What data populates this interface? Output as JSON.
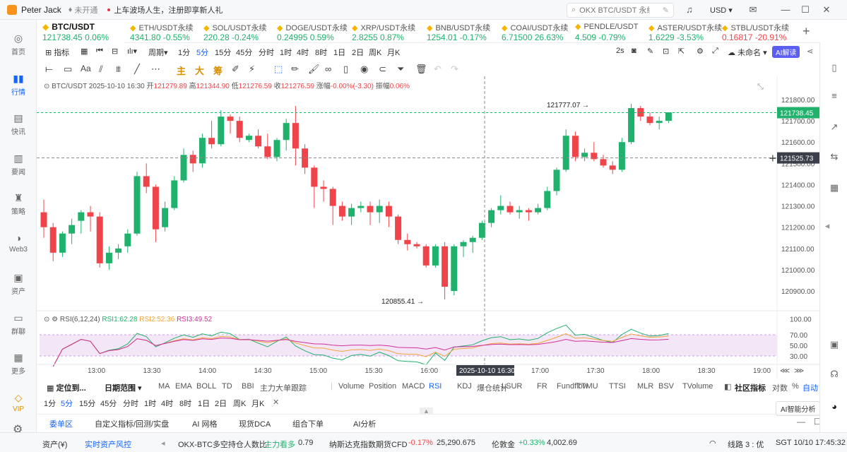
{
  "top": {
    "username": "Peter Jack",
    "verify_badge": "未开通",
    "news": "上车波场人生，注册即享新人礼",
    "search_placeholder": "OKX BTC/USDT 永续",
    "currency": "USD"
  },
  "sidebar": [
    {
      "label": "首页",
      "icon": "home-icon"
    },
    {
      "label": "行情",
      "icon": "chart-bars-icon",
      "active": true
    },
    {
      "label": "快讯",
      "icon": "flash-news-icon"
    },
    {
      "label": "要闻",
      "icon": "document-icon"
    },
    {
      "label": "策略",
      "icon": "strategy-icon"
    },
    {
      "label": "Web3",
      "icon": "web3-icon"
    },
    {
      "label": "资产",
      "icon": "wallet-icon"
    },
    {
      "label": "群聊",
      "icon": "chat-icon"
    },
    {
      "label": "更多",
      "icon": "grid-icon"
    },
    {
      "label": "VIP",
      "icon": "vip-diamond-icon"
    }
  ],
  "tickers": [
    {
      "name": "BTC/USDT",
      "price": "121738.45",
      "change": "0.06%",
      "dir": "up",
      "selected": true
    },
    {
      "name": "ETH/USDT永续",
      "price": "4341.80",
      "change": "-0.55%",
      "dir": "up"
    },
    {
      "name": "SOL/USDT永续",
      "price": "220.28",
      "change": "-0.24%",
      "dir": "up"
    },
    {
      "name": "DOGE/USDT永续",
      "price": "0.24995",
      "change": "0.59%",
      "dir": "up"
    },
    {
      "name": "XRP/USDT永续",
      "price": "2.8255",
      "change": "0.87%",
      "dir": "up"
    },
    {
      "name": "BNB/USDT永续",
      "price": "1254.01",
      "change": "-0.17%",
      "dir": "up"
    },
    {
      "name": "COAI/USDT永续",
      "price": "6.71500",
      "change": "26.63%",
      "dir": "up"
    },
    {
      "name": "PENDLE/USDT",
      "price": "4.509",
      "change": "-0.79%",
      "dir": "up"
    },
    {
      "name": "ASTER/USDT永续",
      "price": "1.6229",
      "change": "-3.53%",
      "dir": "up"
    },
    {
      "name": "STBL/USDT永续",
      "price": "0.16817",
      "change": "-20.91%",
      "dir": "dn"
    }
  ],
  "toolbar1": {
    "indicators": "指标",
    "period": "周期",
    "intervals": [
      "1分",
      "5分",
      "15分",
      "45分",
      "分时",
      "1时",
      "4时",
      "8时",
      "1日",
      "2日",
      "周K",
      "月K"
    ],
    "active_interval": "5分",
    "refresh": "2s",
    "unnamed": "未命名",
    "ai": "AI解读"
  },
  "toolbar2": {
    "text_tool": "Aa",
    "main_labels": [
      "主",
      "大",
      "筹"
    ]
  },
  "ohlc": {
    "symbol": "BTC/USDT",
    "datetime": "2025-10-10 16:30",
    "open_label": "开",
    "open": "121279.89",
    "high_label": "高",
    "high": "121344.90",
    "low_label": "低",
    "low": "121276.59",
    "close_label": "收",
    "close": "121276.59",
    "change_label": "涨幅",
    "change": "-0.00%(-3.30)",
    "amp_label": "振幅",
    "amp": "0.06%"
  },
  "chart_data": {
    "type": "candlestick",
    "price_axis": [
      "121800.00",
      "121700.00",
      "121600.00",
      "121500.00",
      "121400.00",
      "121300.00",
      "121200.00",
      "121100.00",
      "121000.00",
      "120900.00"
    ],
    "y_range": [
      120820,
      121880
    ],
    "time_axis": [
      "13:00",
      "13:30",
      "14:00",
      "14:30",
      "15:00",
      "15:30",
      "16:00",
      "16:30",
      "17:00",
      "17:30",
      "18:00",
      "18:30",
      "19:00"
    ],
    "crosshair_time": "2025-10-10 16:30",
    "current_price": "121738.45",
    "crosshair_price": "121525.73",
    "high_marker": "121777.07",
    "low_marker": "120855.41",
    "candles": [
      [
        121270,
        121330,
        121150,
        121200
      ],
      [
        121200,
        121220,
        121040,
        121080
      ],
      [
        121080,
        121180,
        121060,
        121170
      ],
      [
        121170,
        121240,
        121120,
        121210
      ],
      [
        121230,
        121280,
        121170,
        121270
      ],
      [
        121270,
        121300,
        121180,
        121250
      ],
      [
        121250,
        121270,
        121010,
        121030
      ],
      [
        121030,
        121110,
        121000,
        121080
      ],
      [
        121080,
        121120,
        121050,
        121100
      ],
      [
        121110,
        121190,
        121080,
        121170
      ],
      [
        121170,
        121460,
        121160,
        121440
      ],
      [
        121440,
        121500,
        121360,
        121390
      ],
      [
        121390,
        121400,
        121130,
        121190
      ],
      [
        121200,
        121320,
        121180,
        121290
      ],
      [
        121290,
        121440,
        121280,
        121420
      ],
      [
        121420,
        121570,
        121410,
        121540
      ],
      [
        121540,
        121560,
        121460,
        121500
      ],
      [
        121500,
        121640,
        121480,
        121620
      ],
      [
        121620,
        121700,
        121570,
        121590
      ],
      [
        121590,
        121750,
        121580,
        121720
      ],
      [
        121720,
        121730,
        121640,
        121700
      ],
      [
        121700,
        121720,
        121600,
        121620
      ],
      [
        121610,
        121640,
        121600,
        121630
      ],
      [
        121630,
        121660,
        121570,
        121580
      ],
      [
        121580,
        121640,
        121520,
        121530
      ],
      [
        121530,
        121620,
        121510,
        121610
      ],
      [
        121610,
        121710,
        121560,
        121690
      ],
      [
        121690,
        121770,
        121490,
        121570
      ],
      [
        121570,
        121590,
        121450,
        121480
      ],
      [
        121480,
        121490,
        121290,
        121390
      ],
      [
        121390,
        121420,
        121320,
        121380
      ],
      [
        121380,
        121390,
        121210,
        121300
      ],
      [
        121300,
        121320,
        121230,
        121250
      ],
      [
        121250,
        121310,
        121210,
        121290
      ],
      [
        121290,
        121320,
        121270,
        121300
      ],
      [
        121300,
        121320,
        121210,
        121270
      ],
      [
        121270,
        121330,
        121220,
        121300
      ],
      [
        121300,
        121320,
        121200,
        121250
      ],
      [
        121250,
        121260,
        121120,
        121140
      ],
      [
        121140,
        121170,
        121090,
        121120
      ],
      [
        121120,
        121130,
        121100,
        121110
      ],
      [
        121110,
        121120,
        121010,
        121020
      ],
      [
        121020,
        121120,
        121010,
        121110
      ],
      [
        121110,
        121130,
        120860,
        120920
      ],
      [
        120900,
        121120,
        120880,
        121110
      ],
      [
        121110,
        121140,
        121060,
        121130
      ],
      [
        121130,
        121160,
        121080,
        121150
      ],
      [
        121150,
        121230,
        121140,
        121220
      ],
      [
        121220,
        121290,
        121200,
        121280
      ],
      [
        121280,
        121350,
        121260,
        121300
      ],
      [
        121300,
        121320,
        121260,
        121270
      ],
      [
        121270,
        121300,
        121240,
        121280
      ],
      [
        121280,
        121290,
        121230,
        121270
      ],
      [
        121270,
        121310,
        121260,
        121290
      ],
      [
        121290,
        121390,
        121280,
        121370
      ],
      [
        121370,
        121480,
        121350,
        121470
      ],
      [
        121470,
        121660,
        121460,
        121630
      ],
      [
        121630,
        121650,
        121510,
        121530
      ],
      [
        121530,
        121570,
        121510,
        121550
      ],
      [
        121550,
        121600,
        121510,
        121520
      ],
      [
        121520,
        121540,
        121480,
        121490
      ],
      [
        121490,
        121510,
        121450,
        121470
      ],
      [
        121470,
        121620,
        121460,
        121600
      ],
      [
        121600,
        121780,
        121590,
        121760
      ],
      [
        121760,
        121770,
        121700,
        121720
      ],
      [
        121720,
        121740,
        121680,
        121690
      ],
      [
        121690,
        121720,
        121660,
        121700
      ],
      [
        121700,
        121740,
        121690,
        121740
      ]
    ],
    "rsi": {
      "label": "RSI(6,12,24)",
      "rsi1_label": "RSI1:",
      "rsi1": "62.28",
      "rsi2_label": "RSI2:",
      "rsi2": "52.36",
      "rsi3_label": "RSI3:",
      "rsi3": "49.52",
      "axis": [
        "100.00",
        "70.00",
        "50.00",
        "30.00"
      ]
    }
  },
  "bottombar": {
    "locate": "定位到...",
    "date_range": "日期范围",
    "main_inds": [
      "MA",
      "EMA",
      "BOLL",
      "TD",
      "BBI",
      "主力大单跟踪"
    ],
    "sub_inds": [
      "Volume",
      "Position",
      "MACD",
      "RSI",
      "KDJ",
      "爆仓统计",
      "LSUR",
      "FR",
      "Fundflow",
      "TTMU",
      "TTSI",
      "MLR",
      "BSV",
      "TVolume"
    ],
    "active_sub": "RSI",
    "community": "社区指标",
    "log": "对数",
    "pct": "%",
    "auto": "自动"
  },
  "tfbar": [
    "1分",
    "5分",
    "15分",
    "45分",
    "分时",
    "1时",
    "4时",
    "8时",
    "1日",
    "2日",
    "周K",
    "月K"
  ],
  "tabs": [
    "委单区",
    "自定义指标/回测/实盘",
    "AI 网格",
    "现货DCA",
    "组合下单",
    "AI分析"
  ],
  "ai_assistant": "AI智能分析",
  "status": {
    "asset": "资产(¥)",
    "risk": "实时资产风控",
    "ls_label": "OKX-BTC多空持仓人数比",
    "ls_state": "主力看多",
    "ls_val": "0.79",
    "nasdaq_label": "纳斯达克指数期货CFD",
    "nasdaq_chg": "-0.17%",
    "nasdaq_val": "25,290.675",
    "gold_label": "伦敦金",
    "gold_chg": "+0.33%",
    "gold_val": "4,002.69",
    "line": "线路 3 : 优",
    "time": "SGT  10/10 17:45:32"
  }
}
